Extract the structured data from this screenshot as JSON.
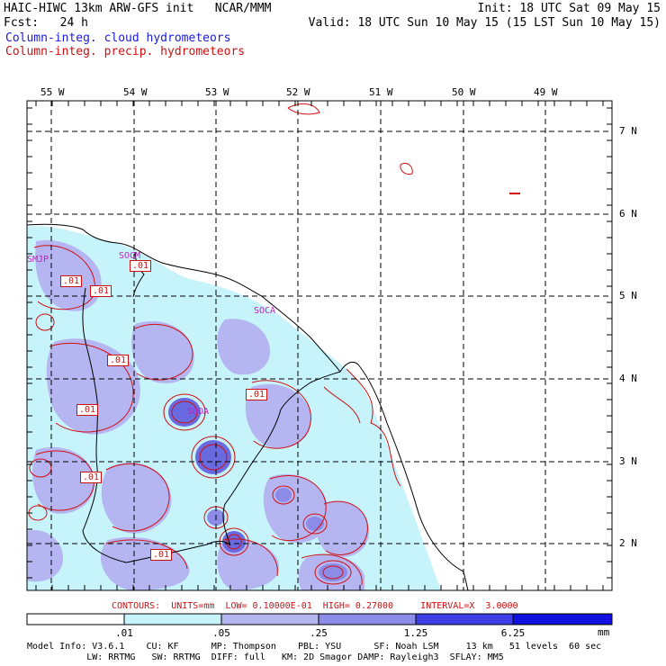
{
  "header": {
    "line1_left": "HAIC-HIWC 13km ARW-GFS init   NCAR/MMM",
    "line1_right": "Init: 18 UTC Sat 09 May 15",
    "line2_left": "Fcst:   24 h",
    "line2_right": "Valid: 18 UTC Sun 10 May 15 (15 LST Sun 10 May 15)",
    "field1": "Column-integ. cloud hydrometeors",
    "field2": "Column-integ. precip. hydrometeors"
  },
  "colors": {
    "field1": "#1a1adb",
    "field2": "#d01010",
    "shade1": "#c7f3fb",
    "shade2": "#b5b5f2",
    "shade3": "#8c8ce8",
    "shade4": "#6a6ae0",
    "shade5": "#3d3de6",
    "shade6": "#1010e0"
  },
  "lon_labels": [
    "55 W",
    "54 W",
    "53 W",
    "52 W",
    "51 W",
    "50 W",
    "49 W"
  ],
  "lat_labels": [
    "7 N",
    "6 N",
    "5 N",
    "4 N",
    "3 N",
    "2 N"
  ],
  "stations": [
    "SMJP",
    "SOCM",
    "SOCA",
    "SOOA"
  ],
  "contour_labels": [
    ".01",
    ".01",
    ".01",
    ".01",
    ".01",
    ".01",
    ".01",
    ".01"
  ],
  "contours_line": "CONTOURS:  UNITS=mm  LOW= 0.10000E-01  HIGH= 0.27000     INTERVAL=X  3.0000",
  "colorbar": {
    "labels": [
      ".01",
      ".05",
      ".25",
      "1.25",
      "6.25"
    ],
    "units": "mm"
  },
  "footer": {
    "line1": "Model Info: V3.6.1    CU: KF      MP: Thompson    PBL: YSU      SF: Noah LSM     13 km   51 levels  60 sec",
    "line2": "           LW: RRTMG   SW: RRTMG  DIFF: full   KM: 2D Smagor DAMP: Rayleigh3  SFLAY: MM5"
  }
}
